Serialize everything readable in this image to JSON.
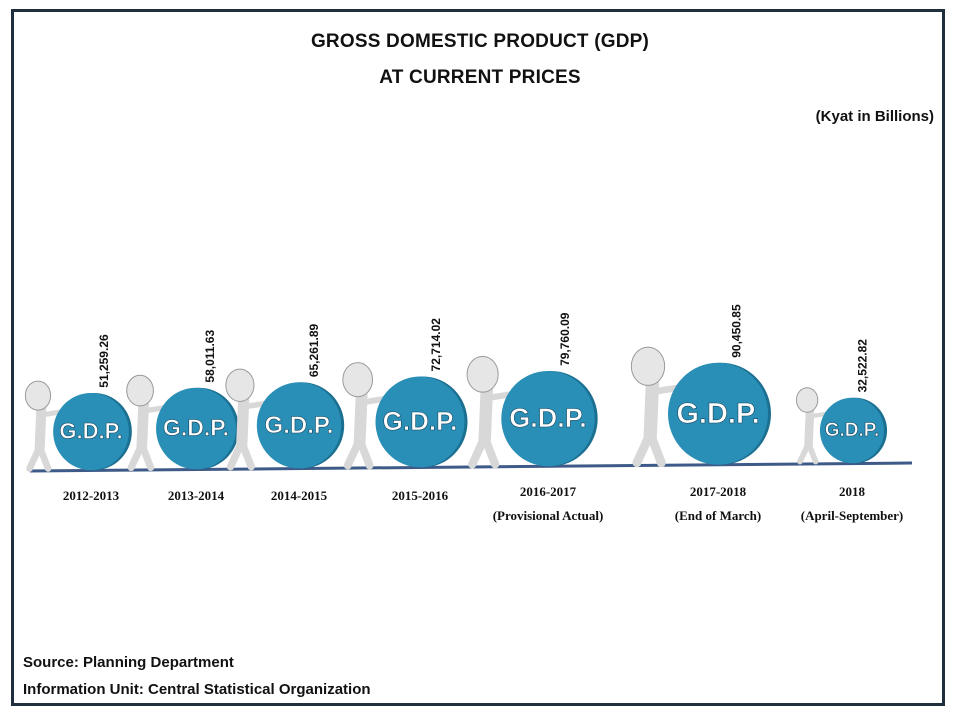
{
  "title_line1": "GROSS DOMESTIC PRODUCT (GDP)",
  "title_line2": "AT CURRENT PRICES",
  "unit_label": "(Kyat in Billions)",
  "source": "Source:  Planning Department",
  "info_unit": "Information Unit:  Central Statistical Organization",
  "disc_text": "G.D.P.",
  "colors": {
    "disc": "#2a8fb7",
    "disc_edge": "#1b6f90",
    "baseline": "#3d5a88",
    "figure": "#d8d8d8",
    "figure_edge": "#9a9a9a",
    "frame": "#1f2f3d"
  },
  "chart_data": {
    "type": "bar",
    "title": "GROSS DOMESTIC PRODUCT (GDP) AT CURRENT PRICES",
    "ylabel": "",
    "xlabel": "",
    "unit": "(Kyat in Billions)",
    "categories": [
      "2012-2013",
      "2013-2014",
      "2014-2015",
      "2015-2016",
      "2016-2017 (Provisional Actual)",
      "2017-2018 (End of March)",
      "2018 (April-September)"
    ],
    "category_lines": [
      [
        "2012-2013"
      ],
      [
        "2013-2014"
      ],
      [
        "2014-2015"
      ],
      [
        "2015-2016"
      ],
      [
        "2016-2017",
        "(Provisional Actual)"
      ],
      [
        "2017-2018",
        "(End of March)"
      ],
      [
        "2018",
        "(April-September)"
      ]
    ],
    "values": [
      51259.26,
      58011.63,
      65261.89,
      72714.02,
      79760.09,
      90450.85,
      32522.82
    ],
    "value_labels": [
      "51,259.26",
      "58,011.63",
      "65,261.89",
      "72,714.02",
      "79,760.09",
      "90,450.85",
      "32,522.82"
    ],
    "grid": false,
    "legend": "none"
  }
}
